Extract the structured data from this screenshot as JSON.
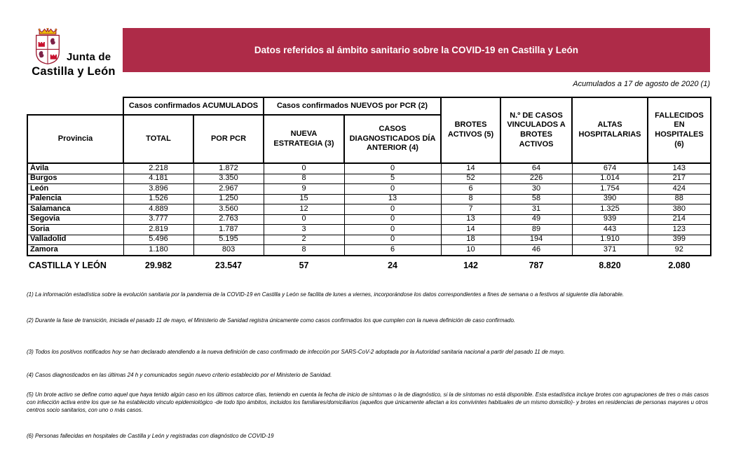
{
  "logo": {
    "line1": "Junta de",
    "line2": "Castilla y León"
  },
  "banner": {
    "title": "Datos referidos al ámbito sanitario sobre la COVID-19 en Castilla y León",
    "color": "#AE2B48"
  },
  "date_note": "Acumulados a 17 de agosto de 2020 (1)",
  "table": {
    "group_headers": {
      "acumulados": "Casos confirmados ACUMULADOS",
      "nuevos": "Casos confirmados NUEVOS por PCR (2)"
    },
    "columns": [
      "Provincia",
      "TOTAL",
      "POR PCR",
      "NUEVA ESTRATEGIA (3)",
      "CASOS DIAGNOSTICADOS DÍA ANTERIOR (4)",
      "BROTES ACTIVOS (5)",
      "N.º DE CASOS VINCULADOS A BROTES ACTIVOS",
      "ALTAS HOSPITALARIAS",
      "FALLECIDOS EN HOSPITALES (6)"
    ],
    "rows": [
      [
        "Ávila",
        "2.218",
        "1.872",
        "0",
        "0",
        "14",
        "64",
        "674",
        "143"
      ],
      [
        "Burgos",
        "4.181",
        "3.350",
        "8",
        "5",
        "52",
        "226",
        "1.014",
        "217"
      ],
      [
        "León",
        "3.896",
        "2.967",
        "9",
        "0",
        "6",
        "30",
        "1.754",
        "424"
      ],
      [
        "Palencia",
        "1.526",
        "1.250",
        "15",
        "13",
        "8",
        "58",
        "390",
        "88"
      ],
      [
        "Salamanca",
        "4.889",
        "3.560",
        "12",
        "0",
        "7",
        "31",
        "1.325",
        "380"
      ],
      [
        "Segovia",
        "3.777",
        "2.763",
        "0",
        "0",
        "13",
        "49",
        "939",
        "214"
      ],
      [
        "Soria",
        "2.819",
        "1.787",
        "3",
        "0",
        "14",
        "89",
        "443",
        "123"
      ],
      [
        "Valladolid",
        "5.496",
        "5.195",
        "2",
        "0",
        "18",
        "194",
        "1.910",
        "399"
      ],
      [
        "Zamora",
        "1.180",
        "803",
        "8",
        "6",
        "10",
        "46",
        "371",
        "92"
      ]
    ],
    "total_row": [
      "CASTILLA Y LEÓN",
      "29.982",
      "23.547",
      "57",
      "24",
      "142",
      "787",
      "8.820",
      "2.080"
    ]
  },
  "footnotes": [
    "(1) La información estadística sobre la evolución sanitaria por la pandemia de la COVID-19 en Castilla y León se facilita de lunes a viernes, incorporándose los datos correspondientes a fines de semana o a festivos al siguiente día laborable.",
    "(2) Durante la fase de transición, iniciada el pasado 11 de mayo, el Ministerio de Sanidad registra únicamente como casos confirmados los que cumplen con la nueva definición de caso confirmado.",
    "(3) Todos los positivos notificados hoy se han declarado atendiendo a la nueva definición de caso confirmado de infección por SARS-CoV-2 adoptada por la Autoridad sanitaria nacional a partir del pasado 11 de mayo.",
    "(4) Casos diagnosticados en las últimas 24 h y comunicados según nuevo criterio establecido por el Ministerio de Sanidad.",
    "(5) Un brote activo se define como aquel que haya tenido algún caso en los últimos catorce días, teniendo en cuenta la fecha de inicio de síntomas o la de diagnóstico, si la de síntomas no está disponible. Esta estadística incluye brotes con agrupaciones de tres o más casos con infección activa entre los que se ha establecido vinculo epidemiológico -de todo tipo ámbitos, incluidos los familiares/domiciliarios (aquellos que únicamente afectan a los convivintes habituales de un mismo domicilio)- y brotes en residencias de personas mayores u otros centros socio sanitarios, con uno o más casos.",
    "(6) Personas fallecidas en hospitales de Castilla y León y registradas con diagnóstico de COVID-19"
  ]
}
